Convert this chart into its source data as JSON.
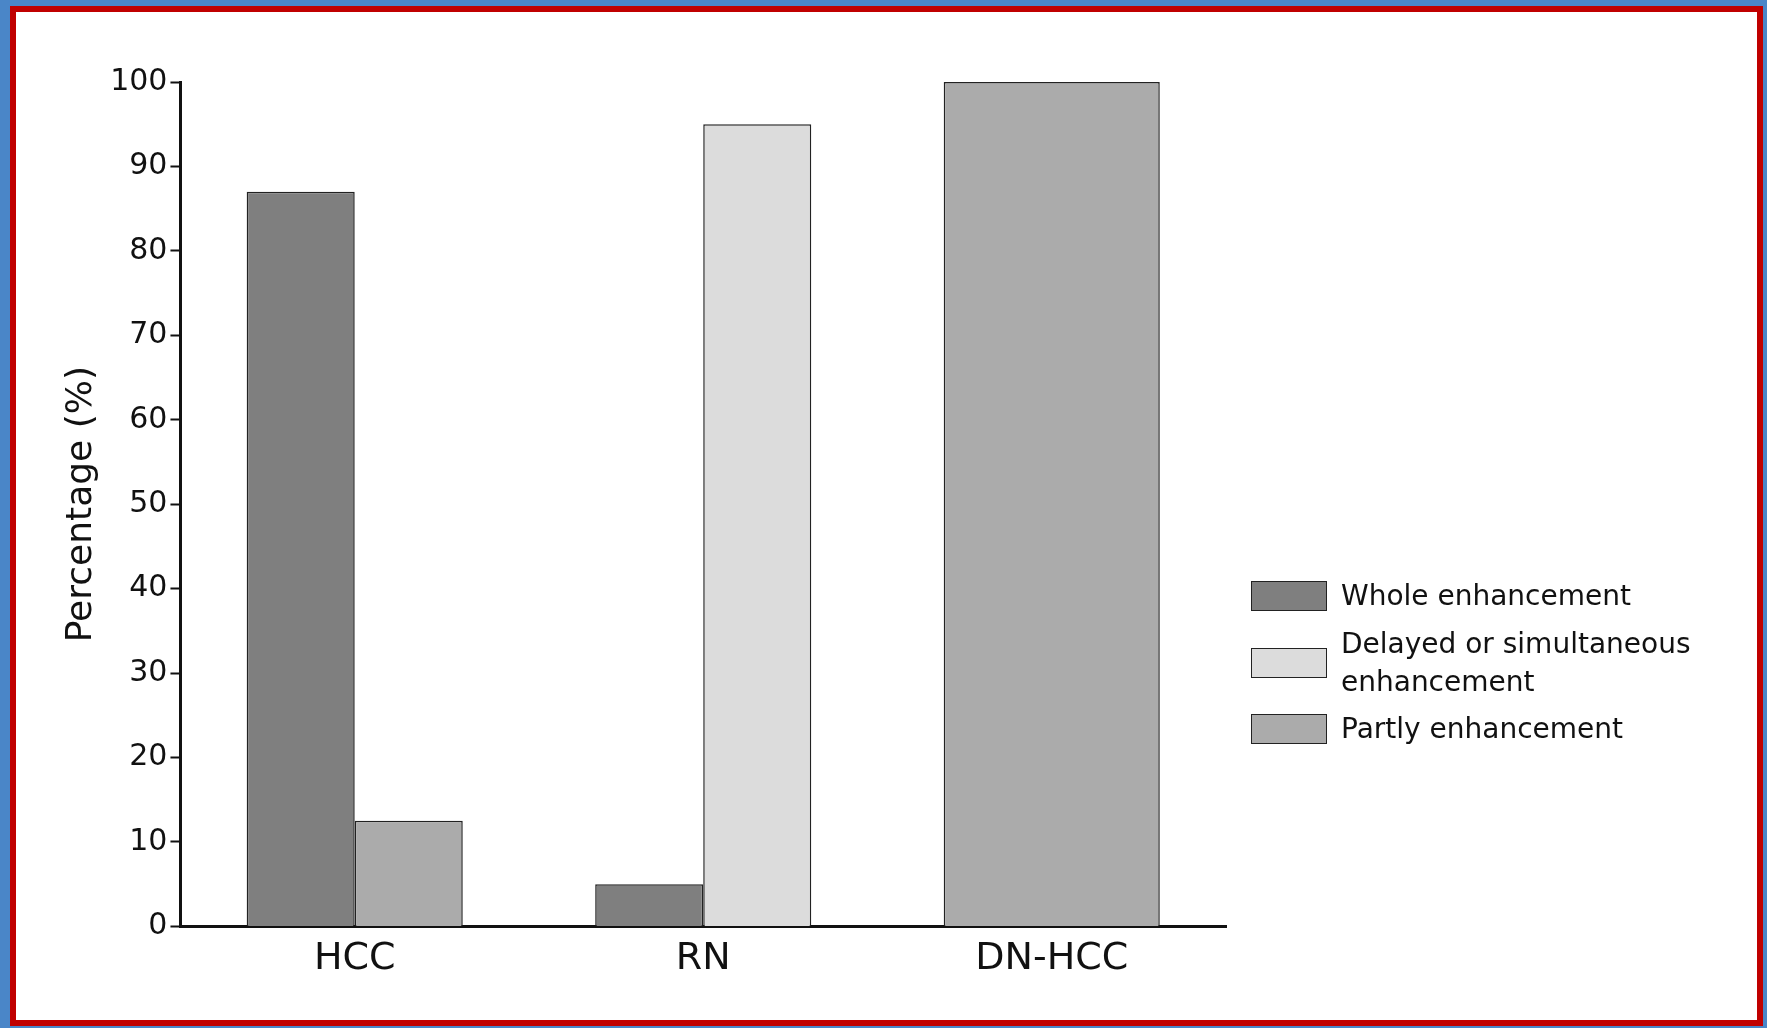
{
  "chart_data": {
    "type": "bar",
    "ylabel": "Percentage (%)",
    "categories": [
      "HCC",
      "RN",
      "DN-HCC"
    ],
    "series": [
      {
        "name": "Whole enhancement",
        "color": "#7f7f7f",
        "values": [
          87,
          5,
          null
        ]
      },
      {
        "name": "Delayed or simultaneous enhancement",
        "color": "#dcdcdc",
        "values": [
          null,
          95,
          null
        ]
      },
      {
        "name": "Partly enhancement",
        "color": "#ababab",
        "values": [
          12.5,
          null,
          100
        ]
      }
    ],
    "ylim": [
      0,
      100
    ],
    "yticks": [
      0,
      10,
      20,
      30,
      40,
      50,
      60,
      70,
      80,
      90,
      100
    ],
    "grid": false,
    "legend": "right"
  }
}
